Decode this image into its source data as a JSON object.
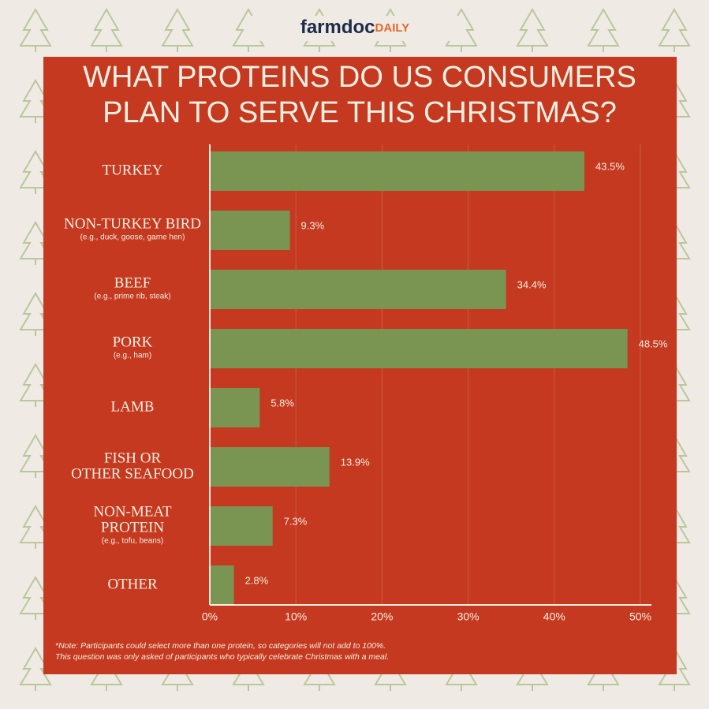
{
  "header": {
    "brand": "farmdoc",
    "brand_suffix": "DAILY"
  },
  "chart_data": {
    "type": "bar",
    "orientation": "horizontal",
    "title": [
      "WHAT PROTEINS DO US CONSUMERS",
      "PLAN TO SERVE THIS CHRISTMAS?"
    ],
    "categories": [
      [
        "TURKEY"
      ],
      [
        "NON-TURKEY BIRD"
      ],
      [
        "BEEF"
      ],
      [
        "PORK"
      ],
      [
        "LAMB"
      ],
      [
        "FISH OR",
        "OTHER SEAFOOD"
      ],
      [
        "NON-MEAT",
        "PROTEIN"
      ],
      [
        "OTHER"
      ]
    ],
    "sublabels": [
      null,
      "(e.g., duck, goose, game hen)",
      "(e.g., prime rib, steak)",
      "(e.g., ham)",
      null,
      null,
      "(e.g., tofu, beans)",
      null
    ],
    "values": [
      43.5,
      9.3,
      34.4,
      48.5,
      5.8,
      13.9,
      7.3,
      2.8
    ],
    "value_labels": [
      "43.5%",
      "9.3%",
      "34.4%",
      "48.5%",
      "5.8%",
      "13.9%",
      "7.3%",
      "2.8%"
    ],
    "color": "#7a9452",
    "xlim": [
      0,
      50
    ],
    "xticks": [
      {
        "value": 0,
        "label": "0%"
      },
      {
        "value": 10,
        "label": "10%"
      },
      {
        "value": 20,
        "label": "20%"
      },
      {
        "value": 30,
        "label": "30%"
      },
      {
        "value": 40,
        "label": "40%"
      },
      {
        "value": 50,
        "label": "50%"
      }
    ],
    "grid": true,
    "note": [
      "*Note: Participants could select more than one protein, so categories will not add to 100%.",
      "This question was only asked of participants who typically celebrate Christmas with a meal."
    ]
  }
}
